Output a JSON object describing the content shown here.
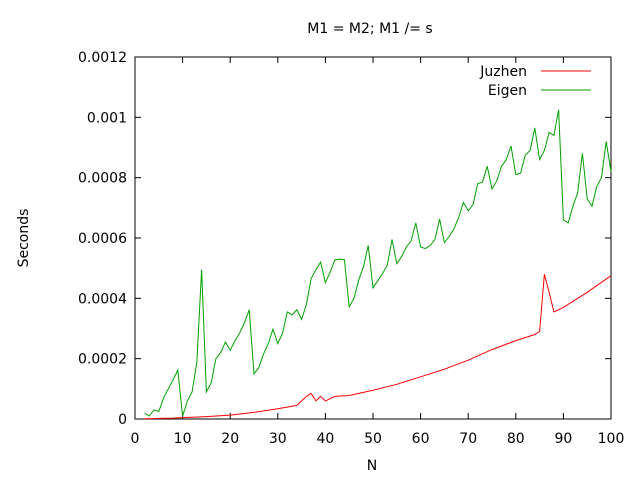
{
  "chart_data": {
    "type": "line",
    "title": "M1 = M2; M1 /= s",
    "xlabel": "N",
    "ylabel": "Seconds",
    "xlim": [
      0,
      100
    ],
    "ylim": [
      0,
      0.0012
    ],
    "x_ticks": [
      0,
      10,
      20,
      30,
      40,
      50,
      60,
      70,
      80,
      90,
      100
    ],
    "x_tick_labels": [
      "0",
      "10",
      "20",
      "30",
      "40",
      "50",
      "60",
      "70",
      "80",
      "90",
      "100"
    ],
    "y_ticks": [
      0,
      0.0002,
      0.0004,
      0.0006,
      0.0008,
      0.001,
      0.0012
    ],
    "y_tick_labels": [
      "0",
      "0.0002",
      "0.0004",
      "0.0006",
      "0.0008",
      "0.001",
      "0.0012"
    ],
    "grid": false,
    "legend_position": "top-right",
    "series": [
      {
        "name": "Juzhen",
        "color": "#ff0000",
        "x": [
          2,
          5,
          8,
          10,
          12,
          15,
          20,
          25,
          30,
          34,
          36,
          37,
          38,
          39,
          40,
          42,
          45,
          50,
          55,
          60,
          65,
          70,
          75,
          80,
          84,
          85,
          86,
          87,
          88,
          90,
          95,
          100
        ],
        "y": [
          1e-06,
          2e-06,
          3e-06,
          5e-06,
          6e-06,
          8e-06,
          1.3e-05,
          2.2e-05,
          3.4e-05,
          4.5e-05,
          7.5e-05,
          8.5e-05,
          6e-05,
          7.5e-05,
          6e-05,
          7.5e-05,
          7.8e-05,
          9.5e-05,
          0.000115,
          0.00014,
          0.000165,
          0.000195,
          0.00023,
          0.00026,
          0.00028,
          0.00029,
          0.00048,
          0.00042,
          0.000355,
          0.00037,
          0.00042,
          0.000475
        ]
      },
      {
        "name": "Eigen",
        "color": "#00a000",
        "x": [
          2,
          3,
          4,
          5,
          6,
          7,
          8,
          9,
          10,
          11,
          12,
          13,
          14,
          15,
          16,
          17,
          18,
          19,
          20,
          21,
          22,
          23,
          24,
          25,
          26,
          27,
          28,
          29,
          30,
          31,
          32,
          33,
          34,
          35,
          36,
          37,
          38,
          39,
          40,
          41,
          42,
          43,
          44,
          45,
          46,
          47,
          48,
          49,
          50,
          51,
          52,
          53,
          54,
          55,
          56,
          57,
          58,
          59,
          60,
          61,
          62,
          63,
          64,
          65,
          66,
          67,
          68,
          69,
          70,
          71,
          72,
          73,
          74,
          75,
          76,
          77,
          78,
          79,
          80,
          81,
          82,
          83,
          84,
          85,
          86,
          87,
          88,
          89,
          90,
          91,
          92,
          93,
          94,
          95,
          96,
          97,
          98,
          99,
          100
        ],
        "y": [
          2e-05,
          1e-05,
          3e-05,
          2.5e-05,
          7e-05,
          0.0001,
          0.00013,
          0.000162,
          1e-05,
          6e-05,
          9e-05,
          0.00019,
          0.000495,
          9e-05,
          0.00012,
          0.0002,
          0.00022,
          0.000255,
          0.000228,
          0.00026,
          0.000285,
          0.00032,
          0.000362,
          0.00015,
          0.00017,
          0.000215,
          0.00025,
          0.000298,
          0.00025,
          0.000285,
          0.000355,
          0.000345,
          0.000362,
          0.00033,
          0.00038,
          0.000465,
          0.000495,
          0.00052,
          0.000452,
          0.000487,
          0.000528,
          0.00053,
          0.000528,
          0.000372,
          0.0004,
          0.00046,
          0.000505,
          0.000575,
          0.000435,
          0.000458,
          0.000482,
          0.00051,
          0.000595,
          0.000515,
          0.000538,
          0.00057,
          0.00059,
          0.00065,
          0.00057,
          0.000565,
          0.000575,
          0.000595,
          0.000663,
          0.000585,
          0.000605,
          0.00063,
          0.000668,
          0.000718,
          0.00069,
          0.00071,
          0.00078,
          0.000785,
          0.000838,
          0.000762,
          0.00079,
          0.000838,
          0.00086,
          0.000905,
          0.00081,
          0.000815,
          0.000875,
          0.00089,
          0.000965,
          0.00086,
          0.00089,
          0.00095,
          0.00094,
          0.001025,
          0.00066,
          0.00065,
          0.000705,
          0.00075,
          0.00088,
          0.00073,
          0.000705,
          0.00077,
          0.0008,
          0.00092,
          0.00082
        ]
      }
    ]
  }
}
